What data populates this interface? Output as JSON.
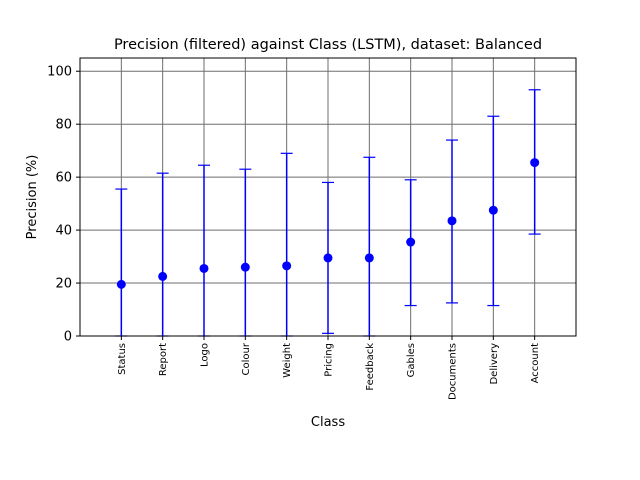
{
  "chart_data": {
    "type": "scatter",
    "title": "Precision (filtered) against Class (LSTM), dataset: Balanced",
    "xlabel": "Class",
    "ylabel": "Precision (%)",
    "ylim": [
      0,
      105
    ],
    "yticks": [
      0,
      20,
      40,
      60,
      80,
      100
    ],
    "grid": true,
    "categories": [
      "Status",
      "Report",
      "Logo",
      "Colour",
      "Weight",
      "Pricing",
      "Feedback",
      "Gables",
      "Documents",
      "Delivery",
      "Account"
    ],
    "series": [
      {
        "values": [
          19.5,
          22.5,
          25.5,
          26.0,
          26.5,
          29.5,
          29.5,
          35.5,
          43.5,
          47.5,
          65.5
        ],
        "lower": [
          0,
          0,
          0,
          0,
          0,
          1.0,
          0,
          11.5,
          12.5,
          11.5,
          38.5
        ],
        "upper": [
          55.5,
          61.5,
          64.5,
          63.0,
          69.0,
          58.0,
          67.5,
          59.0,
          74.0,
          83.0,
          93.0
        ],
        "color": "#0000ff"
      }
    ]
  }
}
